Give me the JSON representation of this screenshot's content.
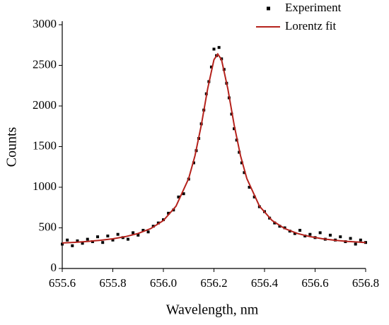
{
  "chart_data": {
    "type": "scatter",
    "xlabel": "Wavelength, nm",
    "ylabel": "Counts",
    "xlim": [
      655.6,
      656.8
    ],
    "xticks": [
      655.6,
      655.8,
      {
        "value": 656,
        "label": "656.0"
      },
      656.2,
      656.4,
      656.6,
      656.8
    ],
    "ylim": [
      0,
      3000
    ],
    "yticks": [
      0,
      500,
      1000,
      1500,
      2000,
      2500,
      3000
    ],
    "legend": "upper right",
    "series": [
      {
        "name": "Experiment",
        "mode": "markers",
        "color": "#000000",
        "x": [
          655.6,
          655.62,
          655.64,
          655.66,
          655.68,
          655.7,
          655.72,
          655.74,
          655.76,
          655.78,
          655.8,
          655.82,
          655.84,
          655.86,
          655.88,
          655.9,
          655.92,
          655.94,
          655.96,
          655.98,
          656.0,
          656.02,
          656.04,
          656.06,
          656.08,
          656.1,
          656.12,
          656.13,
          656.14,
          656.15,
          656.16,
          656.17,
          656.18,
          656.19,
          656.2,
          656.21,
          656.22,
          656.23,
          656.24,
          656.25,
          656.26,
          656.27,
          656.28,
          656.29,
          656.3,
          656.31,
          656.32,
          656.34,
          656.36,
          656.38,
          656.4,
          656.42,
          656.44,
          656.46,
          656.48,
          656.5,
          656.52,
          656.54,
          656.56,
          656.58,
          656.6,
          656.62,
          656.64,
          656.66,
          656.68,
          656.7,
          656.72,
          656.74,
          656.76,
          656.78,
          656.8
        ],
        "values": [
          300,
          350,
          280,
          340,
          310,
          360,
          330,
          390,
          320,
          400,
          350,
          420,
          380,
          360,
          440,
          410,
          470,
          450,
          520,
          560,
          600,
          680,
          720,
          880,
          920,
          1100,
          1300,
          1450,
          1600,
          1780,
          1950,
          2150,
          2300,
          2480,
          2700,
          2620,
          2720,
          2580,
          2450,
          2280,
          2100,
          1900,
          1720,
          1580,
          1430,
          1300,
          1180,
          1000,
          880,
          760,
          700,
          620,
          560,
          520,
          500,
          460,
          430,
          470,
          400,
          420,
          380,
          440,
          360,
          410,
          350,
          390,
          330,
          370,
          300,
          350,
          320
        ]
      },
      {
        "name": "Lorentz fit",
        "mode": "line",
        "color": "#b5221c",
        "x": [
          655.6,
          655.65,
          655.7,
          655.75,
          655.8,
          655.85,
          655.9,
          655.95,
          656.0,
          656.05,
          656.1,
          656.125,
          656.15,
          656.175,
          656.2,
          656.215,
          656.23,
          656.255,
          656.28,
          656.305,
          656.33,
          656.38,
          656.43,
          656.48,
          656.53,
          656.58,
          656.63,
          656.68,
          656.73,
          656.8
        ],
        "values": [
          314,
          322,
          333,
          347,
          365,
          392,
          431,
          491,
          590,
          767,
          1107,
          1388,
          1765,
          2210,
          2569,
          2640,
          2569,
          2210,
          1765,
          1388,
          1107,
          767,
          590,
          491,
          431,
          392,
          365,
          347,
          333,
          319
        ]
      }
    ]
  }
}
